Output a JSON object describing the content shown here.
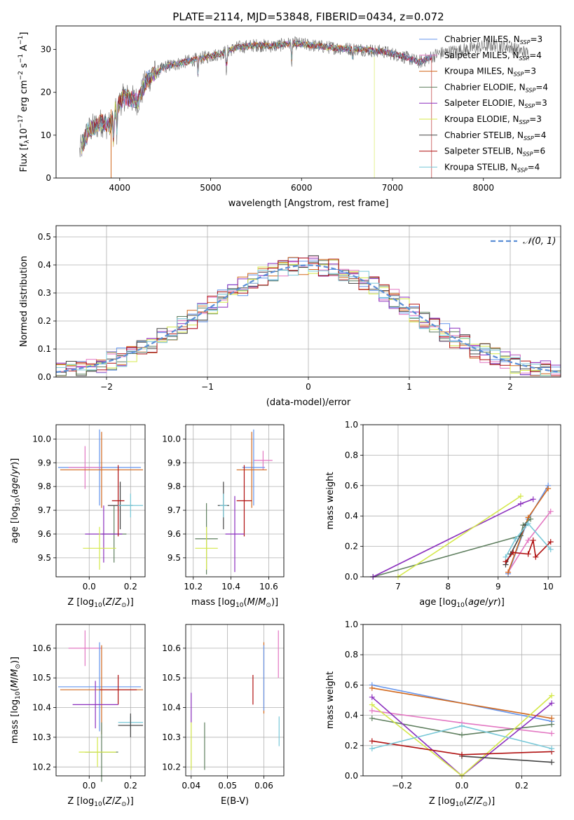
{
  "figure_title": "PLATE=2114, MJD=53848, FIBERID=0434, z=0.072",
  "chart_data": [
    {
      "id": "spectrum",
      "type": "line",
      "title": "PLATE=2114, MJD=53848, FIBERID=0434, z=0.072",
      "xlabel": "wavelength [Angstrom, rest frame]",
      "ylabel": "Flux [f_λ 10^-17 erg cm^-2 s^-1 A^-1]",
      "xlim": [
        3300,
        8850
      ],
      "ylim": [
        0,
        35.5
      ],
      "x_ticks": [
        4000,
        5000,
        6000,
        7000,
        8000
      ],
      "y_ticks": [
        0,
        10,
        20,
        30
      ],
      "grid": false,
      "legend_position": "top-right",
      "x_start": 3560,
      "x_end": 8500,
      "model_end": 7430,
      "anchors": [
        [
          3560,
          6
        ],
        [
          3650,
          11
        ],
        [
          3800,
          13
        ],
        [
          3900,
          12
        ],
        [
          3950,
          16
        ],
        [
          4050,
          19
        ],
        [
          4200,
          18
        ],
        [
          4300,
          23
        ],
        [
          4500,
          26
        ],
        [
          4700,
          27
        ],
        [
          4900,
          28
        ],
        [
          5100,
          29
        ],
        [
          5300,
          30.5
        ],
        [
          5500,
          31
        ],
        [
          5700,
          30.8
        ],
        [
          5900,
          31.5
        ],
        [
          6100,
          31
        ],
        [
          6300,
          30.5
        ],
        [
          6500,
          30.2
        ],
        [
          6700,
          30
        ],
        [
          6900,
          29.5
        ],
        [
          7100,
          28.5
        ],
        [
          7300,
          27
        ],
        [
          7500,
          29
        ],
        [
          7800,
          30
        ],
        [
          8100,
          31
        ],
        [
          8300,
          30.5
        ],
        [
          8500,
          29
        ]
      ],
      "dips": [
        [
          3934,
          9
        ],
        [
          3969,
          6
        ],
        [
          4861,
          4
        ],
        [
          5175,
          6
        ],
        [
          5893,
          5
        ],
        [
          6563,
          3
        ],
        [
          6800,
          1
        ]
      ],
      "series": [
        {
          "name": "Chabrier MILES",
          "nssp": "3",
          "color": "#6495ed"
        },
        {
          "name": "Salpeter MILES",
          "nssp": "4",
          "color": "#e377c2"
        },
        {
          "name": "Kroupa MILES",
          "nssp": "3",
          "color": "#d2691e"
        },
        {
          "name": "Chabrier ELODIE",
          "nssp": "4",
          "color": "#5f7f5f"
        },
        {
          "name": "Salpeter ELODIE",
          "nssp": "3",
          "color": "#8b2fbe"
        },
        {
          "name": "Kroupa ELODIE",
          "nssp": "3",
          "color": "#d4e84a"
        },
        {
          "name": "Chabrier STELIB",
          "nssp": "4",
          "color": "#444444"
        },
        {
          "name": "Salpeter STELIB",
          "nssp": "6",
          "color": "#b01010"
        },
        {
          "name": "Kroupa STELIB",
          "nssp": "4",
          "color": "#78c8d8"
        }
      ]
    },
    {
      "id": "residuals",
      "type": "line",
      "xlabel": "(data-model)/error",
      "ylabel": "Normed distribution",
      "xlim": [
        -2.5,
        2.5
      ],
      "ylim": [
        0,
        0.54
      ],
      "x_ticks": [
        -2,
        -1,
        0,
        1,
        2
      ],
      "x_tick_labels": [
        "−2",
        "−1",
        "0",
        "1",
        "2"
      ],
      "y_ticks": [
        0.0,
        0.1,
        0.2,
        0.3,
        0.4,
        0.5
      ],
      "y_tick_labels": [
        "0.0",
        "0.1",
        "0.2",
        "0.3",
        "0.4",
        "0.5"
      ],
      "grid": true,
      "legend_position": "top-right",
      "legend_label": "𝒩(0, 1)",
      "bin_width": 0.1,
      "gauss_color": "#5b8ed6",
      "series": [
        {
          "name": "Chabrier MILES",
          "color": "#6495ed"
        },
        {
          "name": "Salpeter MILES",
          "color": "#e377c2"
        },
        {
          "name": "Kroupa MILES",
          "color": "#d2691e"
        },
        {
          "name": "Chabrier ELODIE",
          "color": "#5f7f5f"
        },
        {
          "name": "Salpeter ELODIE",
          "color": "#8b2fbe"
        },
        {
          "name": "Kroupa ELODIE",
          "color": "#d4e84a"
        },
        {
          "name": "Chabrier STELIB",
          "color": "#444444"
        },
        {
          "name": "Salpeter STELIB",
          "color": "#b01010"
        },
        {
          "name": "Kroupa STELIB",
          "color": "#78c8d8"
        }
      ]
    },
    {
      "id": "age_vs_Z",
      "type": "scatter",
      "xlabel": "Z [log10(Z/Z⊙)]",
      "ylabel": "age [log10(age/yr)]",
      "xlim": [
        -0.16,
        0.27
      ],
      "ylim": [
        9.42,
        10.06
      ],
      "x_ticks": [
        0.0,
        0.2
      ],
      "x_tick_labels": [
        "0.0",
        "0.2"
      ],
      "y_ticks": [
        9.5,
        9.6,
        9.7,
        9.8,
        9.9,
        10.0
      ],
      "y_tick_labels": [
        "9.5",
        "9.6",
        "9.7",
        "9.8",
        "9.9",
        "10.0"
      ],
      "grid": true,
      "points": [
        {
          "x": 0.05,
          "xerr": 0.2,
          "y": 9.88,
          "yerr": 0.16,
          "color": "#6495ed"
        },
        {
          "x": -0.02,
          "xerr": 0.08,
          "y": 9.88,
          "yerr": 0.09,
          "color": "#e377c2"
        },
        {
          "x": 0.06,
          "xerr": 0.2,
          "y": 9.87,
          "yerr": 0.16,
          "color": "#d2691e"
        },
        {
          "x": 0.12,
          "xerr": 0.06,
          "y": 9.6,
          "yerr": 0.12,
          "color": "#5f7f5f"
        },
        {
          "x": 0.07,
          "xerr": 0.09,
          "y": 9.6,
          "yerr": 0.12,
          "color": "#8b2fbe"
        },
        {
          "x": 0.05,
          "xerr": 0.08,
          "y": 9.54,
          "yerr": 0.09,
          "color": "#d4e84a"
        },
        {
          "x": 0.15,
          "xerr": 0.06,
          "y": 9.72,
          "yerr": 0.1,
          "color": "#444444"
        },
        {
          "x": 0.14,
          "xerr": 0.03,
          "y": 9.74,
          "yerr": 0.15,
          "color": "#b01010"
        },
        {
          "x": 0.2,
          "xerr": 0.06,
          "y": 9.72,
          "yerr": 0.05,
          "color": "#78c8d8"
        }
      ]
    },
    {
      "id": "age_vs_mass",
      "type": "scatter",
      "xlabel": "mass [log10(M/M⊙)]",
      "ylabel": "",
      "xlim": [
        10.16,
        10.68
      ],
      "ylim": [
        9.42,
        10.06
      ],
      "x_ticks": [
        10.2,
        10.4,
        10.6
      ],
      "x_tick_labels": [
        "10.2",
        "10.4",
        "10.6"
      ],
      "y_ticks": [
        9.5,
        9.6,
        9.7,
        9.8,
        9.9,
        10.0
      ],
      "y_tick_labels": [
        "9.5",
        "9.6",
        "9.7",
        "9.8",
        "9.9",
        "10.0"
      ],
      "grid": true,
      "points": [
        {
          "x": 10.57,
          "xerr": 0.05,
          "y": 9.91,
          "yerr": 0.04,
          "color": "#e377c2"
        },
        {
          "x": 10.52,
          "xerr": 0.06,
          "y": 9.88,
          "yerr": 0.16,
          "color": "#6495ed"
        },
        {
          "x": 10.51,
          "xerr": 0.08,
          "y": 9.87,
          "yerr": 0.16,
          "color": "#d2691e"
        },
        {
          "x": 10.36,
          "xerr": 0.03,
          "y": 9.72,
          "yerr": 0.1,
          "color": "#444444"
        },
        {
          "x": 10.47,
          "xerr": 0.04,
          "y": 9.74,
          "yerr": 0.15,
          "color": "#b01010"
        },
        {
          "x": 10.36,
          "xerr": 0.02,
          "y": 9.72,
          "yerr": 0.05,
          "color": "#78c8d8"
        },
        {
          "x": 10.42,
          "xerr": 0.05,
          "y": 9.6,
          "yerr": 0.16,
          "color": "#8b2fbe"
        },
        {
          "x": 10.27,
          "xerr": 0.06,
          "y": 9.58,
          "yerr": 0.15,
          "color": "#5f7f5f"
        },
        {
          "x": 10.27,
          "xerr": 0.06,
          "y": 9.54,
          "yerr": 0.09,
          "color": "#d4e84a"
        }
      ]
    },
    {
      "id": "weight_vs_age",
      "type": "line",
      "xlabel": "age [log10(age/yr)]",
      "ylabel": "mass weight",
      "xlim": [
        6.3,
        10.25
      ],
      "ylim": [
        0,
        1.0
      ],
      "x_ticks": [
        7,
        8,
        9,
        10
      ],
      "x_tick_labels": [
        "7",
        "8",
        "9",
        "10"
      ],
      "y_ticks": [
        0.0,
        0.2,
        0.4,
        0.6,
        0.8,
        1.0
      ],
      "y_tick_labels": [
        "0.0",
        "0.2",
        "0.4",
        "0.6",
        "0.8",
        "1.0"
      ],
      "grid": true,
      "series": [
        {
          "color": "#6495ed",
          "points": [
            [
              9.2,
              0.02
            ],
            [
              9.6,
              0.38
            ],
            [
              10.0,
              0.6
            ]
          ]
        },
        {
          "color": "#e377c2",
          "points": [
            [
              9.2,
              0.03
            ],
            [
              9.6,
              0.24
            ],
            [
              10.05,
              0.43
            ]
          ]
        },
        {
          "color": "#d2691e",
          "points": [
            [
              9.2,
              0.03
            ],
            [
              9.6,
              0.39
            ],
            [
              10.0,
              0.58
            ]
          ]
        },
        {
          "color": "#5f7f5f",
          "points": [
            [
              6.5,
              0.0
            ],
            [
              9.45,
              0.27
            ],
            [
              9.5,
              0.34
            ],
            [
              9.65,
              0.38
            ]
          ]
        },
        {
          "color": "#8b2fbe",
          "points": [
            [
              6.5,
              0.0
            ],
            [
              9.45,
              0.48
            ],
            [
              9.7,
              0.51
            ]
          ]
        },
        {
          "color": "#d4e84a",
          "points": [
            [
              7.0,
              0.0
            ],
            [
              9.45,
              0.53
            ]
          ]
        },
        {
          "color": "#444444",
          "points": [
            [
              9.15,
              0.08
            ],
            [
              9.25,
              0.15
            ],
            [
              9.55,
              0.34
            ]
          ]
        },
        {
          "color": "#b01010",
          "points": [
            [
              9.15,
              0.1
            ],
            [
              9.3,
              0.16
            ],
            [
              9.6,
              0.15
            ],
            [
              9.7,
              0.24
            ],
            [
              9.75,
              0.13
            ],
            [
              10.05,
              0.23
            ]
          ]
        },
        {
          "color": "#78c8d8",
          "points": [
            [
              9.15,
              0.13
            ],
            [
              9.35,
              0.25
            ],
            [
              9.6,
              0.35
            ],
            [
              10.05,
              0.18
            ]
          ]
        }
      ]
    },
    {
      "id": "mass_vs_Z",
      "type": "scatter",
      "xlabel": "Z [log10(Z/Z⊙)]",
      "ylabel": "mass [log10(M/M⊙)]",
      "xlim": [
        -0.16,
        0.27
      ],
      "ylim": [
        10.17,
        10.68
      ],
      "x_ticks": [
        0.0,
        0.2
      ],
      "x_tick_labels": [
        "0.0",
        "0.2"
      ],
      "y_ticks": [
        10.2,
        10.3,
        10.4,
        10.5,
        10.6
      ],
      "y_tick_labels": [
        "10.2",
        "10.3",
        "10.4",
        "10.5",
        "10.6"
      ],
      "grid": true,
      "points": [
        {
          "x": -0.02,
          "xerr": 0.08,
          "y": 10.6,
          "yerr": 0.06,
          "color": "#e377c2"
        },
        {
          "x": 0.05,
          "xerr": 0.2,
          "y": 10.47,
          "yerr": 0.15,
          "color": "#6495ed"
        },
        {
          "x": 0.06,
          "xerr": 0.2,
          "y": 10.46,
          "yerr": 0.15,
          "color": "#d2691e"
        },
        {
          "x": 0.14,
          "xerr": 0.09,
          "y": 10.46,
          "yerr": 0.05,
          "color": "#b01010"
        },
        {
          "x": 0.03,
          "xerr": 0.11,
          "y": 10.41,
          "yerr": 0.08,
          "color": "#8b2fbe"
        },
        {
          "x": 0.2,
          "xerr": 0.06,
          "y": 10.35,
          "yerr": 0.02,
          "color": "#78c8d8"
        },
        {
          "x": 0.2,
          "xerr": 0.06,
          "y": 10.34,
          "yerr": 0.04,
          "color": "#444444"
        },
        {
          "x": 0.06,
          "xerr": 0.08,
          "y": 10.25,
          "yerr": 0.1,
          "color": "#5f7f5f"
        },
        {
          "x": 0.04,
          "xerr": 0.09,
          "y": 10.25,
          "yerr": 0.05,
          "color": "#d4e84a"
        }
      ]
    },
    {
      "id": "mass_vs_EBV",
      "type": "scatter",
      "xlabel": "E(B-V)",
      "ylabel": "",
      "xlim": [
        0.0385,
        0.0655
      ],
      "ylim": [
        10.17,
        10.68
      ],
      "x_ticks": [
        0.04,
        0.05,
        0.06
      ],
      "x_tick_labels": [
        "0.04",
        "0.05",
        "0.06"
      ],
      "y_ticks": [
        10.2,
        10.3,
        10.4,
        10.5,
        10.6
      ],
      "y_tick_labels": [
        "10.2",
        "10.3",
        "10.4",
        "10.5",
        "10.6"
      ],
      "grid": true,
      "points": [
        {
          "x": 0.04,
          "y": 10.4,
          "yerr": 0.05,
          "color": "#8b2fbe"
        },
        {
          "x": 0.04,
          "y": 10.27,
          "yerr": 0.08,
          "color": "#d4e84a"
        },
        {
          "x": 0.0437,
          "y": 10.27,
          "yerr": 0.08,
          "color": "#5f7f5f"
        },
        {
          "x": 0.057,
          "y": 10.46,
          "yerr": 0.05,
          "color": "#b01010"
        },
        {
          "x": 0.06,
          "y": 10.5,
          "yerr": 0.12,
          "color": "#d2691e"
        },
        {
          "x": 0.06,
          "y": 10.5,
          "yerr": 0.11,
          "color": "#6495ed"
        },
        {
          "x": 0.064,
          "y": 10.58,
          "yerr": 0.08,
          "color": "#e377c2"
        },
        {
          "x": 0.0642,
          "y": 10.32,
          "yerr": 0.05,
          "color": "#78c8d8"
        }
      ]
    },
    {
      "id": "weight_vs_Z",
      "type": "line",
      "xlabel": "Z [log10(Z/Z⊙)]",
      "ylabel": "mass weight",
      "xlim": [
        -0.33,
        0.33
      ],
      "ylim": [
        0,
        1.0
      ],
      "x_ticks": [
        -0.2,
        0.0,
        0.2
      ],
      "x_tick_labels": [
        "−0.2",
        "0.0",
        "0.2"
      ],
      "y_ticks": [
        0.0,
        0.2,
        0.4,
        0.6,
        0.8,
        1.0
      ],
      "y_tick_labels": [
        "0.0",
        "0.2",
        "0.4",
        "0.6",
        "0.8",
        "1.0"
      ],
      "grid": true,
      "series": [
        {
          "color": "#6495ed",
          "points": [
            [
              -0.3,
              0.6
            ],
            [
              0.3,
              0.36
            ]
          ]
        },
        {
          "color": "#e377c2",
          "points": [
            [
              -0.3,
              0.43
            ],
            [
              0.0,
              0.35
            ],
            [
              0.3,
              0.28
            ]
          ]
        },
        {
          "color": "#d2691e",
          "points": [
            [
              -0.3,
              0.58
            ],
            [
              0.3,
              0.38
            ]
          ]
        },
        {
          "color": "#5f7f5f",
          "points": [
            [
              -0.3,
              0.38
            ],
            [
              0.0,
              0.27
            ],
            [
              0.3,
              0.34
            ]
          ]
        },
        {
          "color": "#8b2fbe",
          "points": [
            [
              -0.3,
              0.52
            ],
            [
              0.0,
              0.0
            ],
            [
              0.3,
              0.48
            ]
          ]
        },
        {
          "color": "#d4e84a",
          "points": [
            [
              -0.3,
              0.47
            ],
            [
              0.0,
              0.0
            ],
            [
              0.3,
              0.53
            ]
          ]
        },
        {
          "color": "#444444",
          "points": [
            [
              0.0,
              0.13
            ],
            [
              0.3,
              0.09
            ]
          ]
        },
        {
          "color": "#b01010",
          "points": [
            [
              -0.3,
              0.23
            ],
            [
              0.0,
              0.14
            ],
            [
              0.3,
              0.16
            ]
          ]
        },
        {
          "color": "#78c8d8",
          "points": [
            [
              -0.3,
              0.18
            ],
            [
              0.0,
              0.33
            ],
            [
              0.3,
              0.18
            ]
          ]
        }
      ]
    }
  ]
}
